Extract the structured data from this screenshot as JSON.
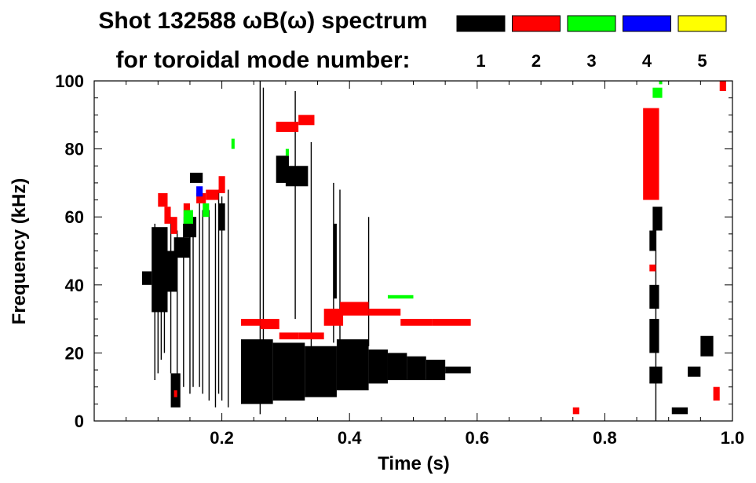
{
  "title_line1": "Shot 132588 ωB(ω) spectrum",
  "title_line2": "for toroidal mode number:",
  "legend": [
    {
      "label": "1",
      "color": "#000000"
    },
    {
      "label": "2",
      "color": "#ff0000"
    },
    {
      "label": "3",
      "color": "#00ff00"
    },
    {
      "label": "4",
      "color": "#0000ff"
    },
    {
      "label": "5",
      "color": "#ffff00"
    }
  ],
  "chart_data": {
    "type": "heatmap",
    "xlabel": "Time (s)",
    "ylabel": "Frequency (kHz)",
    "xlim": [
      0.0,
      1.0
    ],
    "ylim": [
      0,
      100
    ],
    "x_ticks": [
      {
        "v": 0.2,
        "t": "0.2"
      },
      {
        "v": 0.4,
        "t": "0.4"
      },
      {
        "v": 0.6,
        "t": "0.6"
      },
      {
        "v": 0.8,
        "t": "0.8"
      },
      {
        "v": 1.0,
        "t": "1.0"
      }
    ],
    "y_ticks": [
      {
        "v": 0,
        "t": "0"
      },
      {
        "v": 20,
        "t": "20"
      },
      {
        "v": 40,
        "t": "40"
      },
      {
        "v": 60,
        "t": "60"
      },
      {
        "v": 80,
        "t": "80"
      },
      {
        "v": 100,
        "t": "100"
      }
    ],
    "modes": [
      {
        "n": "1",
        "color": "#000000",
        "blobs": [
          [
            0.075,
            0.09,
            40,
            44
          ],
          [
            0.09,
            0.115,
            32,
            57
          ],
          [
            0.115,
            0.13,
            38,
            50
          ],
          [
            0.12,
            0.135,
            4,
            14
          ],
          [
            0.125,
            0.15,
            48,
            54
          ],
          [
            0.14,
            0.16,
            54,
            60
          ],
          [
            0.15,
            0.17,
            70,
            73
          ],
          [
            0.195,
            0.205,
            56,
            64
          ],
          [
            0.23,
            0.28,
            5,
            24
          ],
          [
            0.28,
            0.33,
            6,
            23
          ],
          [
            0.33,
            0.38,
            7,
            22
          ],
          [
            0.38,
            0.43,
            9,
            24
          ],
          [
            0.43,
            0.46,
            11,
            21
          ],
          [
            0.46,
            0.49,
            12,
            20
          ],
          [
            0.49,
            0.52,
            12,
            19
          ],
          [
            0.52,
            0.55,
            12,
            18
          ],
          [
            0.55,
            0.59,
            14,
            16
          ],
          [
            0.285,
            0.305,
            70,
            78
          ],
          [
            0.3,
            0.335,
            69,
            75
          ],
          [
            0.375,
            0.38,
            36,
            58
          ],
          [
            0.875,
            0.89,
            56,
            63
          ],
          [
            0.87,
            0.88,
            50,
            56
          ],
          [
            0.87,
            0.89,
            11,
            16
          ],
          [
            0.87,
            0.885,
            20,
            30
          ],
          [
            0.87,
            0.885,
            33,
            40
          ],
          [
            0.93,
            0.95,
            13,
            16
          ],
          [
            0.95,
            0.97,
            19,
            25
          ],
          [
            0.905,
            0.93,
            2,
            4
          ]
        ],
        "streaks": [
          [
            0.095,
            12,
            58
          ],
          [
            0.1,
            14,
            56
          ],
          [
            0.105,
            18,
            54
          ],
          [
            0.11,
            20,
            56
          ],
          [
            0.12,
            14,
            60
          ],
          [
            0.13,
            12,
            56
          ],
          [
            0.14,
            10,
            58
          ],
          [
            0.15,
            8,
            62
          ],
          [
            0.155,
            10,
            60
          ],
          [
            0.165,
            10,
            64
          ],
          [
            0.17,
            8,
            62
          ],
          [
            0.18,
            6,
            62
          ],
          [
            0.19,
            4,
            64
          ],
          [
            0.195,
            8,
            68
          ],
          [
            0.2,
            6,
            66
          ],
          [
            0.21,
            4,
            68
          ],
          [
            0.26,
            2,
            100
          ],
          [
            0.265,
            20,
            98
          ],
          [
            0.315,
            30,
            97
          ],
          [
            0.375,
            23,
            70
          ],
          [
            0.385,
            20,
            68
          ],
          [
            0.43,
            22,
            60
          ],
          [
            0.34,
            10,
            82
          ],
          [
            0.88,
            0,
            58
          ]
        ]
      },
      {
        "n": "2",
        "color": "#ff0000",
        "blobs": [
          [
            0.1,
            0.115,
            63,
            67
          ],
          [
            0.11,
            0.12,
            58,
            63
          ],
          [
            0.12,
            0.13,
            55,
            60
          ],
          [
            0.14,
            0.15,
            60,
            64
          ],
          [
            0.16,
            0.175,
            64,
            67
          ],
          [
            0.175,
            0.195,
            65,
            68
          ],
          [
            0.195,
            0.205,
            67,
            72
          ],
          [
            0.125,
            0.13,
            7,
            9
          ],
          [
            0.23,
            0.26,
            28,
            30
          ],
          [
            0.26,
            0.29,
            27,
            30
          ],
          [
            0.29,
            0.32,
            24,
            26
          ],
          [
            0.32,
            0.36,
            24,
            26
          ],
          [
            0.36,
            0.39,
            28,
            33
          ],
          [
            0.385,
            0.43,
            31,
            35
          ],
          [
            0.43,
            0.48,
            31,
            33
          ],
          [
            0.48,
            0.53,
            28,
            30
          ],
          [
            0.53,
            0.59,
            28,
            30
          ],
          [
            0.285,
            0.32,
            85,
            88
          ],
          [
            0.32,
            0.345,
            87,
            90
          ],
          [
            0.86,
            0.885,
            65,
            92
          ],
          [
            0.87,
            0.88,
            44,
            46
          ],
          [
            0.98,
            0.99,
            97,
            100
          ],
          [
            0.75,
            0.76,
            2,
            4
          ],
          [
            0.97,
            0.98,
            6,
            10
          ]
        ],
        "streaks": []
      },
      {
        "n": "3",
        "color": "#00ff00",
        "blobs": [
          [
            0.14,
            0.155,
            58,
            62
          ],
          [
            0.17,
            0.18,
            60,
            64
          ],
          [
            0.215,
            0.22,
            80,
            83
          ],
          [
            0.3,
            0.305,
            78,
            80
          ],
          [
            0.46,
            0.5,
            36,
            37
          ],
          [
            0.875,
            0.89,
            95,
            98
          ],
          [
            0.885,
            0.89,
            99,
            101
          ]
        ],
        "streaks": []
      },
      {
        "n": "4",
        "color": "#0000ff",
        "blobs": [
          [
            0.16,
            0.17,
            66,
            69
          ]
        ],
        "streaks": []
      },
      {
        "n": "5",
        "color": "#ffff00",
        "blobs": [],
        "streaks": []
      }
    ]
  }
}
